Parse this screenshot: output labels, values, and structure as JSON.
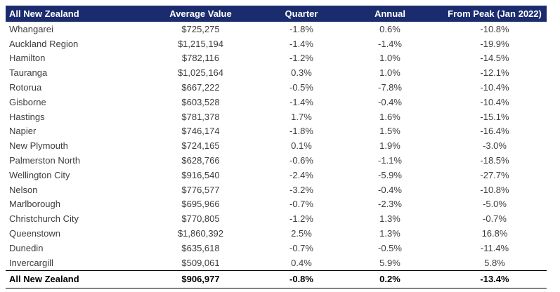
{
  "chart_data": {
    "type": "table",
    "title": "All New Zealand",
    "columns": [
      "All New Zealand",
      "Average Value",
      "Quarter",
      "Annual",
      "From Peak (Jan 2022)"
    ],
    "rows": [
      [
        "Whangarei",
        "$725,275",
        "-1.8%",
        "0.6%",
        "-10.8%"
      ],
      [
        "Auckland Region",
        "$1,215,194",
        "-1.4%",
        "-1.4%",
        "-19.9%"
      ],
      [
        "Hamilton",
        "$782,116",
        "-1.2%",
        "1.0%",
        "-14.5%"
      ],
      [
        "Tauranga",
        "$1,025,164",
        "0.3%",
        "1.0%",
        "-12.1%"
      ],
      [
        "Rotorua",
        "$667,222",
        "-0.5%",
        "-7.8%",
        "-10.4%"
      ],
      [
        "Gisborne",
        "$603,528",
        "-1.4%",
        "-0.4%",
        "-10.4%"
      ],
      [
        "Hastings",
        "$781,378",
        "1.7%",
        "1.6%",
        "-15.1%"
      ],
      [
        "Napier",
        "$746,174",
        "-1.8%",
        "1.5%",
        "-16.4%"
      ],
      [
        "New Plymouth",
        "$724,165",
        "0.1%",
        "1.9%",
        "-3.0%"
      ],
      [
        "Palmerston North",
        "$628,766",
        "-0.6%",
        "-1.1%",
        "-18.5%"
      ],
      [
        "Wellington City",
        "$916,540",
        "-2.4%",
        "-5.9%",
        "-27.7%"
      ],
      [
        "Nelson",
        "$776,577",
        "-3.2%",
        "-0.4%",
        "-10.8%"
      ],
      [
        "Marlborough",
        "$695,966",
        "-0.7%",
        "-2.3%",
        "-5.0%"
      ],
      [
        "Christchurch City",
        "$770,805",
        "-1.2%",
        "1.3%",
        "-0.7%"
      ],
      [
        "Queenstown",
        "$1,860,392",
        "2.5%",
        "1.3%",
        "16.8%"
      ],
      [
        "Dunedin",
        "$635,618",
        "-0.7%",
        "-0.5%",
        "-11.4%"
      ],
      [
        "Invercargill",
        "$509,061",
        "0.4%",
        "5.9%",
        "5.8%"
      ]
    ],
    "total_row": [
      "All New Zealand",
      "$906,977",
      "-0.8%",
      "0.2%",
      "-13.4%"
    ]
  },
  "colors": {
    "header_bg": "#1b2c6e",
    "header_text": "#ffffff",
    "body_text": "#3d3d3d",
    "total_text": "#000000",
    "border": "#000000"
  }
}
